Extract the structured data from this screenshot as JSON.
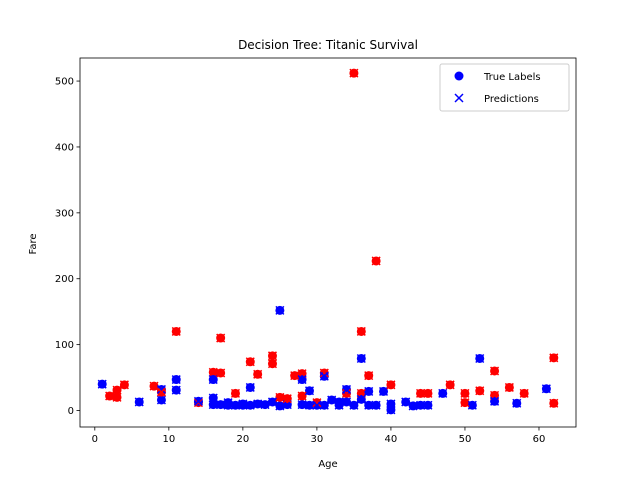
{
  "chart_data": {
    "type": "scatter",
    "title": "Decision Tree: Titanic Survival",
    "xlabel": "Age",
    "ylabel": "Fare",
    "xlim": [
      -2,
      65
    ],
    "ylim": [
      -25,
      535
    ],
    "xticks": [
      0,
      10,
      20,
      30,
      40,
      50,
      60
    ],
    "yticks": [
      0,
      100,
      200,
      300,
      400,
      500
    ],
    "grid": false,
    "legend": "top-right",
    "colors": {
      "survived": "#0000ff",
      "died": "#ff0000"
    },
    "series": [
      {
        "name": "True Labels",
        "marker": "circle",
        "points": [
          {
            "x": 1,
            "y": 40,
            "c": 0
          },
          {
            "x": 2,
            "y": 22,
            "c": 1
          },
          {
            "x": 3,
            "y": 20,
            "c": 1
          },
          {
            "x": 3,
            "y": 31,
            "c": 1
          },
          {
            "x": 4,
            "y": 39,
            "c": 1
          },
          {
            "x": 6,
            "y": 13,
            "c": 0
          },
          {
            "x": 8,
            "y": 37,
            "c": 1
          },
          {
            "x": 9,
            "y": 32,
            "c": 0
          },
          {
            "x": 9,
            "y": 16,
            "c": 0
          },
          {
            "x": 9,
            "y": 28,
            "c": 1
          },
          {
            "x": 11,
            "y": 120,
            "c": 1
          },
          {
            "x": 11,
            "y": 47,
            "c": 0
          },
          {
            "x": 11,
            "y": 31,
            "c": 0
          },
          {
            "x": 14,
            "y": 12,
            "c": 1
          },
          {
            "x": 14,
            "y": 14,
            "c": 0
          },
          {
            "x": 16,
            "y": 58,
            "c": 1
          },
          {
            "x": 16,
            "y": 47,
            "c": 0
          },
          {
            "x": 16,
            "y": 19,
            "c": 0
          },
          {
            "x": 16,
            "y": 9,
            "c": 0
          },
          {
            "x": 17,
            "y": 110,
            "c": 1
          },
          {
            "x": 17,
            "y": 57,
            "c": 1
          },
          {
            "x": 17,
            "y": 9,
            "c": 0
          },
          {
            "x": 18,
            "y": 12,
            "c": 0
          },
          {
            "x": 18,
            "y": 8,
            "c": 0
          },
          {
            "x": 19,
            "y": 26,
            "c": 1
          },
          {
            "x": 19,
            "y": 8,
            "c": 0
          },
          {
            "x": 20,
            "y": 8,
            "c": 0
          },
          {
            "x": 20,
            "y": 10,
            "c": 0
          },
          {
            "x": 21,
            "y": 74,
            "c": 1
          },
          {
            "x": 21,
            "y": 35,
            "c": 0
          },
          {
            "x": 21,
            "y": 8,
            "c": 0
          },
          {
            "x": 22,
            "y": 55,
            "c": 1
          },
          {
            "x": 22,
            "y": 10,
            "c": 0
          },
          {
            "x": 23,
            "y": 9,
            "c": 0
          },
          {
            "x": 24,
            "y": 83,
            "c": 1
          },
          {
            "x": 24,
            "y": 71,
            "c": 1
          },
          {
            "x": 24,
            "y": 13,
            "c": 0
          },
          {
            "x": 25,
            "y": 152,
            "c": 0
          },
          {
            "x": 25,
            "y": 7,
            "c": 0
          },
          {
            "x": 25,
            "y": 20,
            "c": 1
          },
          {
            "x": 26,
            "y": 9,
            "c": 0
          },
          {
            "x": 26,
            "y": 18,
            "c": 1
          },
          {
            "x": 27,
            "y": 53,
            "c": 1
          },
          {
            "x": 28,
            "y": 56,
            "c": 1
          },
          {
            "x": 28,
            "y": 47,
            "c": 0
          },
          {
            "x": 28,
            "y": 22,
            "c": 1
          },
          {
            "x": 28,
            "y": 9,
            "c": 0
          },
          {
            "x": 29,
            "y": 30,
            "c": 0
          },
          {
            "x": 29,
            "y": 8,
            "c": 0
          },
          {
            "x": 30,
            "y": 12,
            "c": 1
          },
          {
            "x": 30,
            "y": 8,
            "c": 0
          },
          {
            "x": 31,
            "y": 57,
            "c": 1
          },
          {
            "x": 31,
            "y": 52,
            "c": 0
          },
          {
            "x": 31,
            "y": 8,
            "c": 0
          },
          {
            "x": 32,
            "y": 16,
            "c": 0
          },
          {
            "x": 33,
            "y": 13,
            "c": 0
          },
          {
            "x": 33,
            "y": 8,
            "c": 0
          },
          {
            "x": 34,
            "y": 26,
            "c": 1
          },
          {
            "x": 34,
            "y": 32,
            "c": 0
          },
          {
            "x": 34,
            "y": 13,
            "c": 0
          },
          {
            "x": 35,
            "y": 512,
            "c": 1
          },
          {
            "x": 35,
            "y": 8,
            "c": 0
          },
          {
            "x": 36,
            "y": 120,
            "c": 1
          },
          {
            "x": 36,
            "y": 79,
            "c": 0
          },
          {
            "x": 36,
            "y": 26,
            "c": 1
          },
          {
            "x": 36,
            "y": 17,
            "c": 0
          },
          {
            "x": 37,
            "y": 53,
            "c": 1
          },
          {
            "x": 37,
            "y": 29,
            "c": 0
          },
          {
            "x": 37,
            "y": 8,
            "c": 0
          },
          {
            "x": 38,
            "y": 227,
            "c": 1
          },
          {
            "x": 38,
            "y": 8,
            "c": 0
          },
          {
            "x": 39,
            "y": 29,
            "c": 0
          },
          {
            "x": 40,
            "y": 39,
            "c": 1
          },
          {
            "x": 40,
            "y": 10,
            "c": 0
          },
          {
            "x": 40,
            "y": 1,
            "c": 0
          },
          {
            "x": 42,
            "y": 13,
            "c": 0
          },
          {
            "x": 43,
            "y": 7,
            "c": 0
          },
          {
            "x": 44,
            "y": 26,
            "c": 1
          },
          {
            "x": 44,
            "y": 8,
            "c": 0
          },
          {
            "x": 45,
            "y": 26,
            "c": 1
          },
          {
            "x": 45,
            "y": 8,
            "c": 0
          },
          {
            "x": 47,
            "y": 26,
            "c": 0
          },
          {
            "x": 48,
            "y": 39,
            "c": 1
          },
          {
            "x": 50,
            "y": 26,
            "c": 1
          },
          {
            "x": 50,
            "y": 12,
            "c": 1
          },
          {
            "x": 51,
            "y": 8,
            "c": 0
          },
          {
            "x": 52,
            "y": 79,
            "c": 0
          },
          {
            "x": 52,
            "y": 30,
            "c": 1
          },
          {
            "x": 54,
            "y": 60,
            "c": 1
          },
          {
            "x": 54,
            "y": 23,
            "c": 1
          },
          {
            "x": 54,
            "y": 14,
            "c": 0
          },
          {
            "x": 56,
            "y": 35,
            "c": 1
          },
          {
            "x": 57,
            "y": 11,
            "c": 0
          },
          {
            "x": 58,
            "y": 26,
            "c": 1
          },
          {
            "x": 61,
            "y": 33,
            "c": 0
          },
          {
            "x": 62,
            "y": 80,
            "c": 1
          },
          {
            "x": 62,
            "y": 11,
            "c": 1
          }
        ]
      },
      {
        "name": "Predictions",
        "marker": "x",
        "points": "same as True Labels"
      }
    ]
  }
}
